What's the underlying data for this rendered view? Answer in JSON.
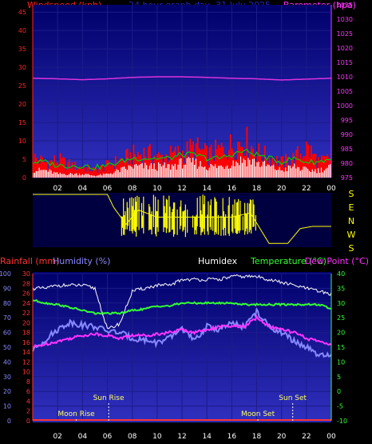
{
  "colors": {
    "background": "#000000",
    "plot_top": "#000070",
    "plot_bottom": "#2a2ab8",
    "wind": "#ff1a1a",
    "gust": "#ff0000",
    "wind_avg": "#00cc00",
    "barometer": "#dd33dd",
    "direction": "#ffff00",
    "rainfall": "#ff3333",
    "humidity": "#8888ff",
    "humidex": "#ffffff",
    "temperature": "#33ff33",
    "dewpoint": "#ff33ff",
    "axis_wind": "#ff2222",
    "axis_baro": "#ff33ff",
    "axis_time": "#ffffff",
    "title": "#2222cc"
  },
  "chart_data": [
    {
      "type": "line",
      "title": "24 hour graph day, 31 July 2025",
      "labels": {
        "left": "Windspeed (kph)",
        "right": "Barometer (hpa)"
      },
      "x_tick_labels": [
        "02",
        "04",
        "06",
        "08",
        "10",
        "12",
        "14",
        "16",
        "18",
        "20",
        "22",
        "00"
      ],
      "left_axis": {
        "ylim": [
          0,
          47
        ],
        "ticks": [
          0,
          5,
          10,
          15,
          20,
          25,
          30,
          35,
          40,
          45
        ]
      },
      "right_axis": {
        "ylim": [
          975,
          1035
        ],
        "ticks": [
          975,
          980,
          985,
          990,
          995,
          1000,
          1005,
          1010,
          1015,
          1020,
          1025,
          1030,
          1035
        ]
      },
      "series": [
        {
          "name": "Barometer (hpa)",
          "axis": "right",
          "x": [
            0,
            2,
            4,
            6,
            8,
            10,
            12,
            14,
            16,
            18,
            20,
            22,
            24
          ],
          "values": [
            1009.5,
            1009.3,
            1009,
            1009.3,
            1009.8,
            1010,
            1010,
            1009.8,
            1009.5,
            1009.3,
            1008.9,
            1009.2,
            1009.5
          ]
        }
      ],
      "wind_envelope_kph": {
        "x": [
          0,
          1,
          2,
          3,
          4,
          5,
          6,
          7,
          8,
          9,
          10,
          11,
          12,
          13,
          14,
          15,
          16,
          17,
          18,
          19,
          20,
          21,
          22,
          23,
          24
        ],
        "gust_max": [
          8,
          6,
          7,
          5,
          4,
          3,
          5,
          7,
          9,
          10,
          8,
          9,
          10,
          12,
          9,
          11,
          13,
          15,
          10,
          8,
          6,
          8,
          12,
          6,
          8
        ],
        "average": [
          2,
          2,
          1,
          1,
          1,
          0.5,
          1,
          2,
          3,
          3,
          3,
          3,
          4,
          4,
          3,
          3,
          4,
          5,
          4,
          3,
          2,
          3,
          2,
          2,
          3
        ]
      },
      "grid": true
    },
    {
      "type": "line",
      "title": "",
      "labels": {
        "right_compass": [
          "S",
          "E",
          "N",
          "W",
          "S"
        ]
      },
      "x_tick_labels": [
        "02",
        "04",
        "06",
        "08",
        "10",
        "12",
        "14",
        "16",
        "18",
        "20",
        "22",
        "00"
      ],
      "direction_deg_approx": {
        "x": [
          0,
          6,
          6.5,
          7.5,
          8.5,
          10,
          12,
          14,
          16,
          17.5,
          19,
          20.5,
          21.5,
          22.5,
          24
        ],
        "values": [
          360,
          360,
          270,
          150,
          250,
          200,
          200,
          200,
          200,
          230,
          15,
          15,
          120,
          135,
          135
        ]
      },
      "grid": false
    },
    {
      "type": "line",
      "title": "",
      "labels": {
        "rainfall": "Rainfall (mm)",
        "humidity": "Humidity (%)",
        "humidex": "Humidex",
        "temperature": "Temperature (°C)",
        "dewpoint": "Dew Point (°C)"
      },
      "x_tick_labels": [
        "02",
        "04",
        "06",
        "08",
        "10",
        "12",
        "14",
        "16",
        "18",
        "20",
        "22",
        "00"
      ],
      "axes": {
        "humidity": {
          "ylim": [
            0,
            100
          ],
          "ticks": [
            0,
            10,
            20,
            30,
            40,
            50,
            60,
            70,
            80,
            90,
            100
          ]
        },
        "rainfall": {
          "ylim": [
            0,
            30
          ],
          "ticks": [
            0,
            2,
            4,
            6,
            8,
            10,
            12,
            14,
            16,
            18,
            20,
            22,
            24,
            26,
            28,
            30
          ]
        },
        "temperature": {
          "ylim": [
            -10,
            40
          ],
          "ticks": [
            -10,
            -5,
            0,
            5,
            10,
            15,
            20,
            25,
            30,
            35,
            40
          ]
        }
      },
      "series": [
        {
          "name": "Humidex",
          "x": [
            0,
            1,
            2,
            3,
            4,
            5,
            6,
            7,
            8,
            9,
            10,
            11,
            12,
            13,
            14,
            15,
            16,
            17,
            18,
            19,
            20,
            21,
            22,
            23,
            24
          ],
          "values": [
            35,
            35,
            36,
            36,
            36,
            35,
            21,
            23,
            34,
            35,
            36,
            36,
            38,
            38,
            38,
            38,
            39,
            39,
            39,
            38,
            37,
            36,
            35,
            34,
            33
          ]
        },
        {
          "name": "Temperature (°C)",
          "x": [
            0,
            1,
            2,
            3,
            4,
            5,
            6,
            7,
            8,
            9,
            10,
            11,
            12,
            13,
            14,
            15,
            16,
            17,
            18,
            19,
            20,
            21,
            22,
            23,
            24
          ],
          "values": [
            31,
            30,
            29.5,
            28.5,
            27.5,
            26.5,
            26.5,
            26.5,
            27.5,
            28,
            29,
            29,
            30,
            30,
            30,
            30,
            30,
            29.5,
            29.5,
            29.5,
            29.5,
            29.5,
            29.5,
            29.5,
            28
          ]
        },
        {
          "name": "Dew Point (°C)",
          "x": [
            0,
            1,
            2,
            3,
            4,
            5,
            6,
            7,
            8,
            9,
            10,
            11,
            12,
            13,
            14,
            15,
            16,
            17,
            18,
            19,
            20,
            21,
            22,
            23,
            24
          ],
          "values": [
            15,
            16,
            17,
            18,
            19,
            19.5,
            19,
            18,
            19,
            19,
            19.5,
            20,
            21,
            20,
            21,
            22,
            22,
            22,
            25,
            22,
            21,
            20,
            18,
            17,
            16
          ]
        },
        {
          "name": "Humidity (%)",
          "x": [
            0,
            1,
            2,
            3,
            4,
            5,
            6,
            7,
            8,
            9,
            10,
            11,
            12,
            13,
            14,
            15,
            16,
            17,
            18,
            19,
            20,
            21,
            22,
            23,
            24
          ],
          "values": [
            48,
            55,
            62,
            67,
            65,
            64,
            61,
            60,
            56,
            55,
            53,
            56,
            63,
            54,
            64,
            62,
            66,
            64,
            74,
            64,
            60,
            54,
            50,
            44,
            44
          ]
        },
        {
          "name": "Rainfall (mm)",
          "x": [
            0,
            24
          ],
          "values": [
            0,
            0
          ]
        }
      ],
      "annotations": [
        {
          "text": "Moon Rise",
          "x": 3.5
        },
        {
          "text": "Sun Rise",
          "x": 6.1
        },
        {
          "text": "Moon Set",
          "x": 18.1
        },
        {
          "text": "Sun Set",
          "x": 20.9
        }
      ],
      "grid": true
    }
  ]
}
